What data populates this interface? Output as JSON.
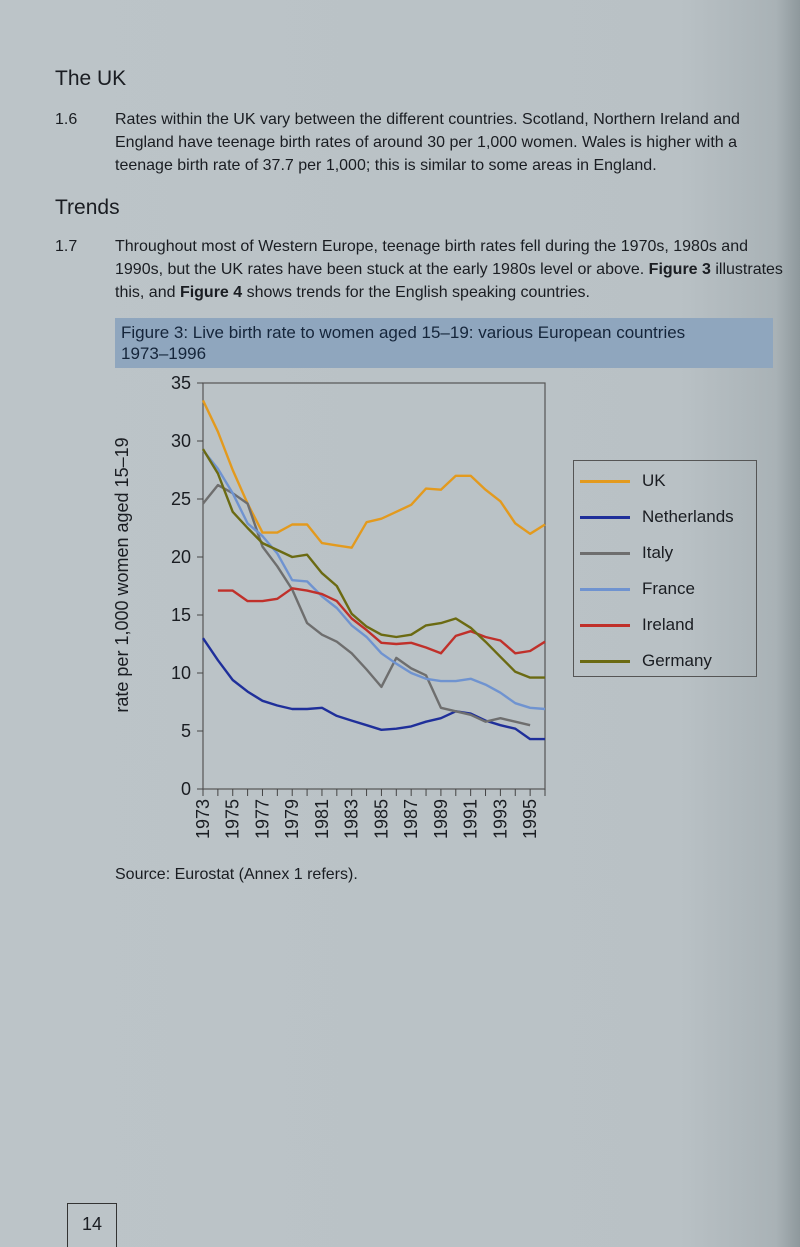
{
  "heading_uk": "The UK",
  "para_1_6": {
    "number": "1.6",
    "text": "Rates within the UK vary between the different countries. Scotland, Northern Ireland and England have teenage birth rates of around 30 per 1,000 women. Wales is higher with a teenage birth rate of 37.7 per 1,000; this is similar to some areas in England."
  },
  "heading_trends": "Trends",
  "para_1_7": {
    "number": "1.7",
    "text_before": "Throughout most of Western Europe, teenage birth rates fell during the 1970s, 1980s and 1990s, but the UK rates have been stuck at the early 1980s level or above. ",
    "fig3": "Figure 3",
    "text_mid": " illustrates this, and ",
    "fig4": "Figure 4",
    "text_after": " shows trends for the English speaking countries."
  },
  "figure": {
    "title_line1": "Figure 3: Live birth rate to women aged 15–19: various European countries",
    "title_line2": "1973–1996",
    "title_band_color": "#8fa6be"
  },
  "chart_data": {
    "type": "line",
    "ylabel": "rate per 1,000 women aged 15–19",
    "xlabel": "",
    "ylim": [
      0,
      35
    ],
    "xlim": [
      1973,
      1996
    ],
    "yticks": [
      "0",
      "5",
      "10",
      "15",
      "20",
      "25",
      "30",
      "35"
    ],
    "xtick_labels": [
      "1973",
      "1975",
      "1977",
      "1979",
      "1981",
      "1983",
      "1985",
      "1987",
      "1989",
      "1991",
      "1993",
      "1995"
    ],
    "grid": false,
    "legend_position": "right",
    "series": [
      {
        "name": "UK",
        "color": "#e39a1e",
        "x": [
          1973,
          1974,
          1975,
          1976,
          1977,
          1978,
          1979,
          1980,
          1981,
          1982,
          1983,
          1984,
          1985,
          1986,
          1987,
          1988,
          1989,
          1990,
          1991,
          1992,
          1993,
          1994,
          1995,
          1996
        ],
        "values": [
          33.5,
          30.8,
          27.5,
          24.6,
          22.1,
          22.1,
          22.8,
          22.8,
          21.2,
          21.0,
          20.8,
          23.0,
          23.3,
          23.9,
          24.5,
          25.9,
          25.8,
          27.0,
          27.0,
          25.8,
          24.8,
          22.9,
          22.0,
          22.8
        ]
      },
      {
        "name": "Netherlands",
        "color": "#1f2f9a",
        "x": [
          1973,
          1974,
          1975,
          1976,
          1977,
          1978,
          1979,
          1980,
          1981,
          1982,
          1983,
          1984,
          1985,
          1986,
          1987,
          1988,
          1989,
          1990,
          1991,
          1992,
          1993,
          1994,
          1995,
          1996
        ],
        "values": [
          13.0,
          11.1,
          9.4,
          8.4,
          7.6,
          7.2,
          6.9,
          6.9,
          7.0,
          6.3,
          5.9,
          5.5,
          5.1,
          5.2,
          5.4,
          5.8,
          6.1,
          6.7,
          6.5,
          5.9,
          5.5,
          5.2,
          4.3,
          4.3
        ]
      },
      {
        "name": "Italy",
        "color": "#6e6e6e",
        "x": [
          1973,
          1974,
          1975,
          1976,
          1977,
          1978,
          1979,
          1980,
          1981,
          1982,
          1983,
          1984,
          1985,
          1986,
          1987,
          1988,
          1989,
          1990,
          1991,
          1992,
          1993,
          1994,
          1995
        ],
        "values": [
          24.6,
          26.2,
          25.5,
          24.6,
          20.9,
          19.2,
          17.2,
          14.3,
          13.3,
          12.7,
          11.7,
          10.3,
          8.8,
          11.3,
          10.4,
          9.8,
          7.0,
          6.7,
          6.4,
          5.8,
          6.1,
          5.8,
          5.5
        ]
      },
      {
        "name": "France",
        "color": "#6f93d0",
        "x": [
          1973,
          1974,
          1975,
          1976,
          1977,
          1978,
          1979,
          1980,
          1981,
          1982,
          1983,
          1984,
          1985,
          1986,
          1987,
          1988,
          1989,
          1990,
          1991,
          1992,
          1993,
          1994,
          1995,
          1996
        ],
        "values": [
          29.2,
          27.6,
          25.5,
          22.9,
          21.8,
          20.3,
          18.0,
          17.9,
          16.6,
          15.6,
          14.1,
          13.1,
          11.7,
          10.8,
          10.0,
          9.5,
          9.3,
          9.3,
          9.5,
          9.0,
          8.3,
          7.4,
          7.0,
          6.9
        ]
      },
      {
        "name": "Ireland",
        "color": "#c0302a",
        "x": [
          1974,
          1975,
          1976,
          1977,
          1978,
          1979,
          1980,
          1981,
          1982,
          1983,
          1984,
          1985,
          1986,
          1987,
          1988,
          1989,
          1990,
          1991,
          1992,
          1993,
          1994,
          1995,
          1996
        ],
        "values": [
          17.1,
          17.1,
          16.2,
          16.2,
          16.4,
          17.3,
          17.1,
          16.8,
          16.2,
          14.7,
          13.7,
          12.6,
          12.5,
          12.6,
          12.2,
          11.7,
          13.2,
          13.6,
          13.1,
          12.8,
          11.7,
          11.9,
          12.7
        ]
      },
      {
        "name": "Germany",
        "color": "#6b6a12",
        "x": [
          1973,
          1974,
          1975,
          1976,
          1977,
          1978,
          1979,
          1980,
          1981,
          1982,
          1983,
          1984,
          1985,
          1986,
          1987,
          1988,
          1989,
          1990,
          1991,
          1992,
          1993,
          1994,
          1995,
          1996
        ],
        "values": [
          29.3,
          27.2,
          23.9,
          22.5,
          21.2,
          20.6,
          20.0,
          20.2,
          18.6,
          17.5,
          15.1,
          14.0,
          13.3,
          13.1,
          13.3,
          14.1,
          14.3,
          14.7,
          13.9,
          12.7,
          11.4,
          10.1,
          9.6,
          9.6
        ]
      }
    ]
  },
  "source": "Source: Eurostat (Annex 1 refers).",
  "page_number": "14"
}
